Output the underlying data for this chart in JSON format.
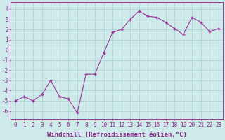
{
  "x": [
    0,
    1,
    2,
    3,
    4,
    5,
    6,
    7,
    8,
    9,
    10,
    11,
    12,
    13,
    14,
    15,
    16,
    17,
    18,
    19,
    20,
    21,
    22,
    23
  ],
  "y": [
    -5.0,
    -4.6,
    -5.0,
    -4.4,
    -3.0,
    -4.6,
    -4.8,
    -6.2,
    -2.4,
    -2.4,
    -0.3,
    1.7,
    2.0,
    3.0,
    3.8,
    3.3,
    3.2,
    2.7,
    2.1,
    1.5,
    3.2,
    2.7,
    1.8,
    2.1
  ],
  "line_color": "#993399",
  "marker": "+",
  "markersize": 3.5,
  "linewidth": 0.8,
  "xlabel": "Windchill (Refroidissement éolien,°C)",
  "xlabel_fontsize": 6.5,
  "ylabel_ticks": [
    -6,
    -5,
    -4,
    -3,
    -2,
    -1,
    0,
    1,
    2,
    3,
    4
  ],
  "xtick_labels": [
    "0",
    "1",
    "2",
    "3",
    "4",
    "5",
    "6",
    "7",
    "8",
    "9",
    "10",
    "11",
    "12",
    "13",
    "14",
    "15",
    "16",
    "17",
    "18",
    "19",
    "20",
    "21",
    "22",
    "23"
  ],
  "xlim": [
    -0.5,
    23.5
  ],
  "ylim": [
    -6.8,
    4.7
  ],
  "bg_color": "#ceeaea",
  "grid_color": "#aacccc",
  "tick_color": "#882288",
  "tick_fontsize": 5.5,
  "spine_color": "#882288"
}
